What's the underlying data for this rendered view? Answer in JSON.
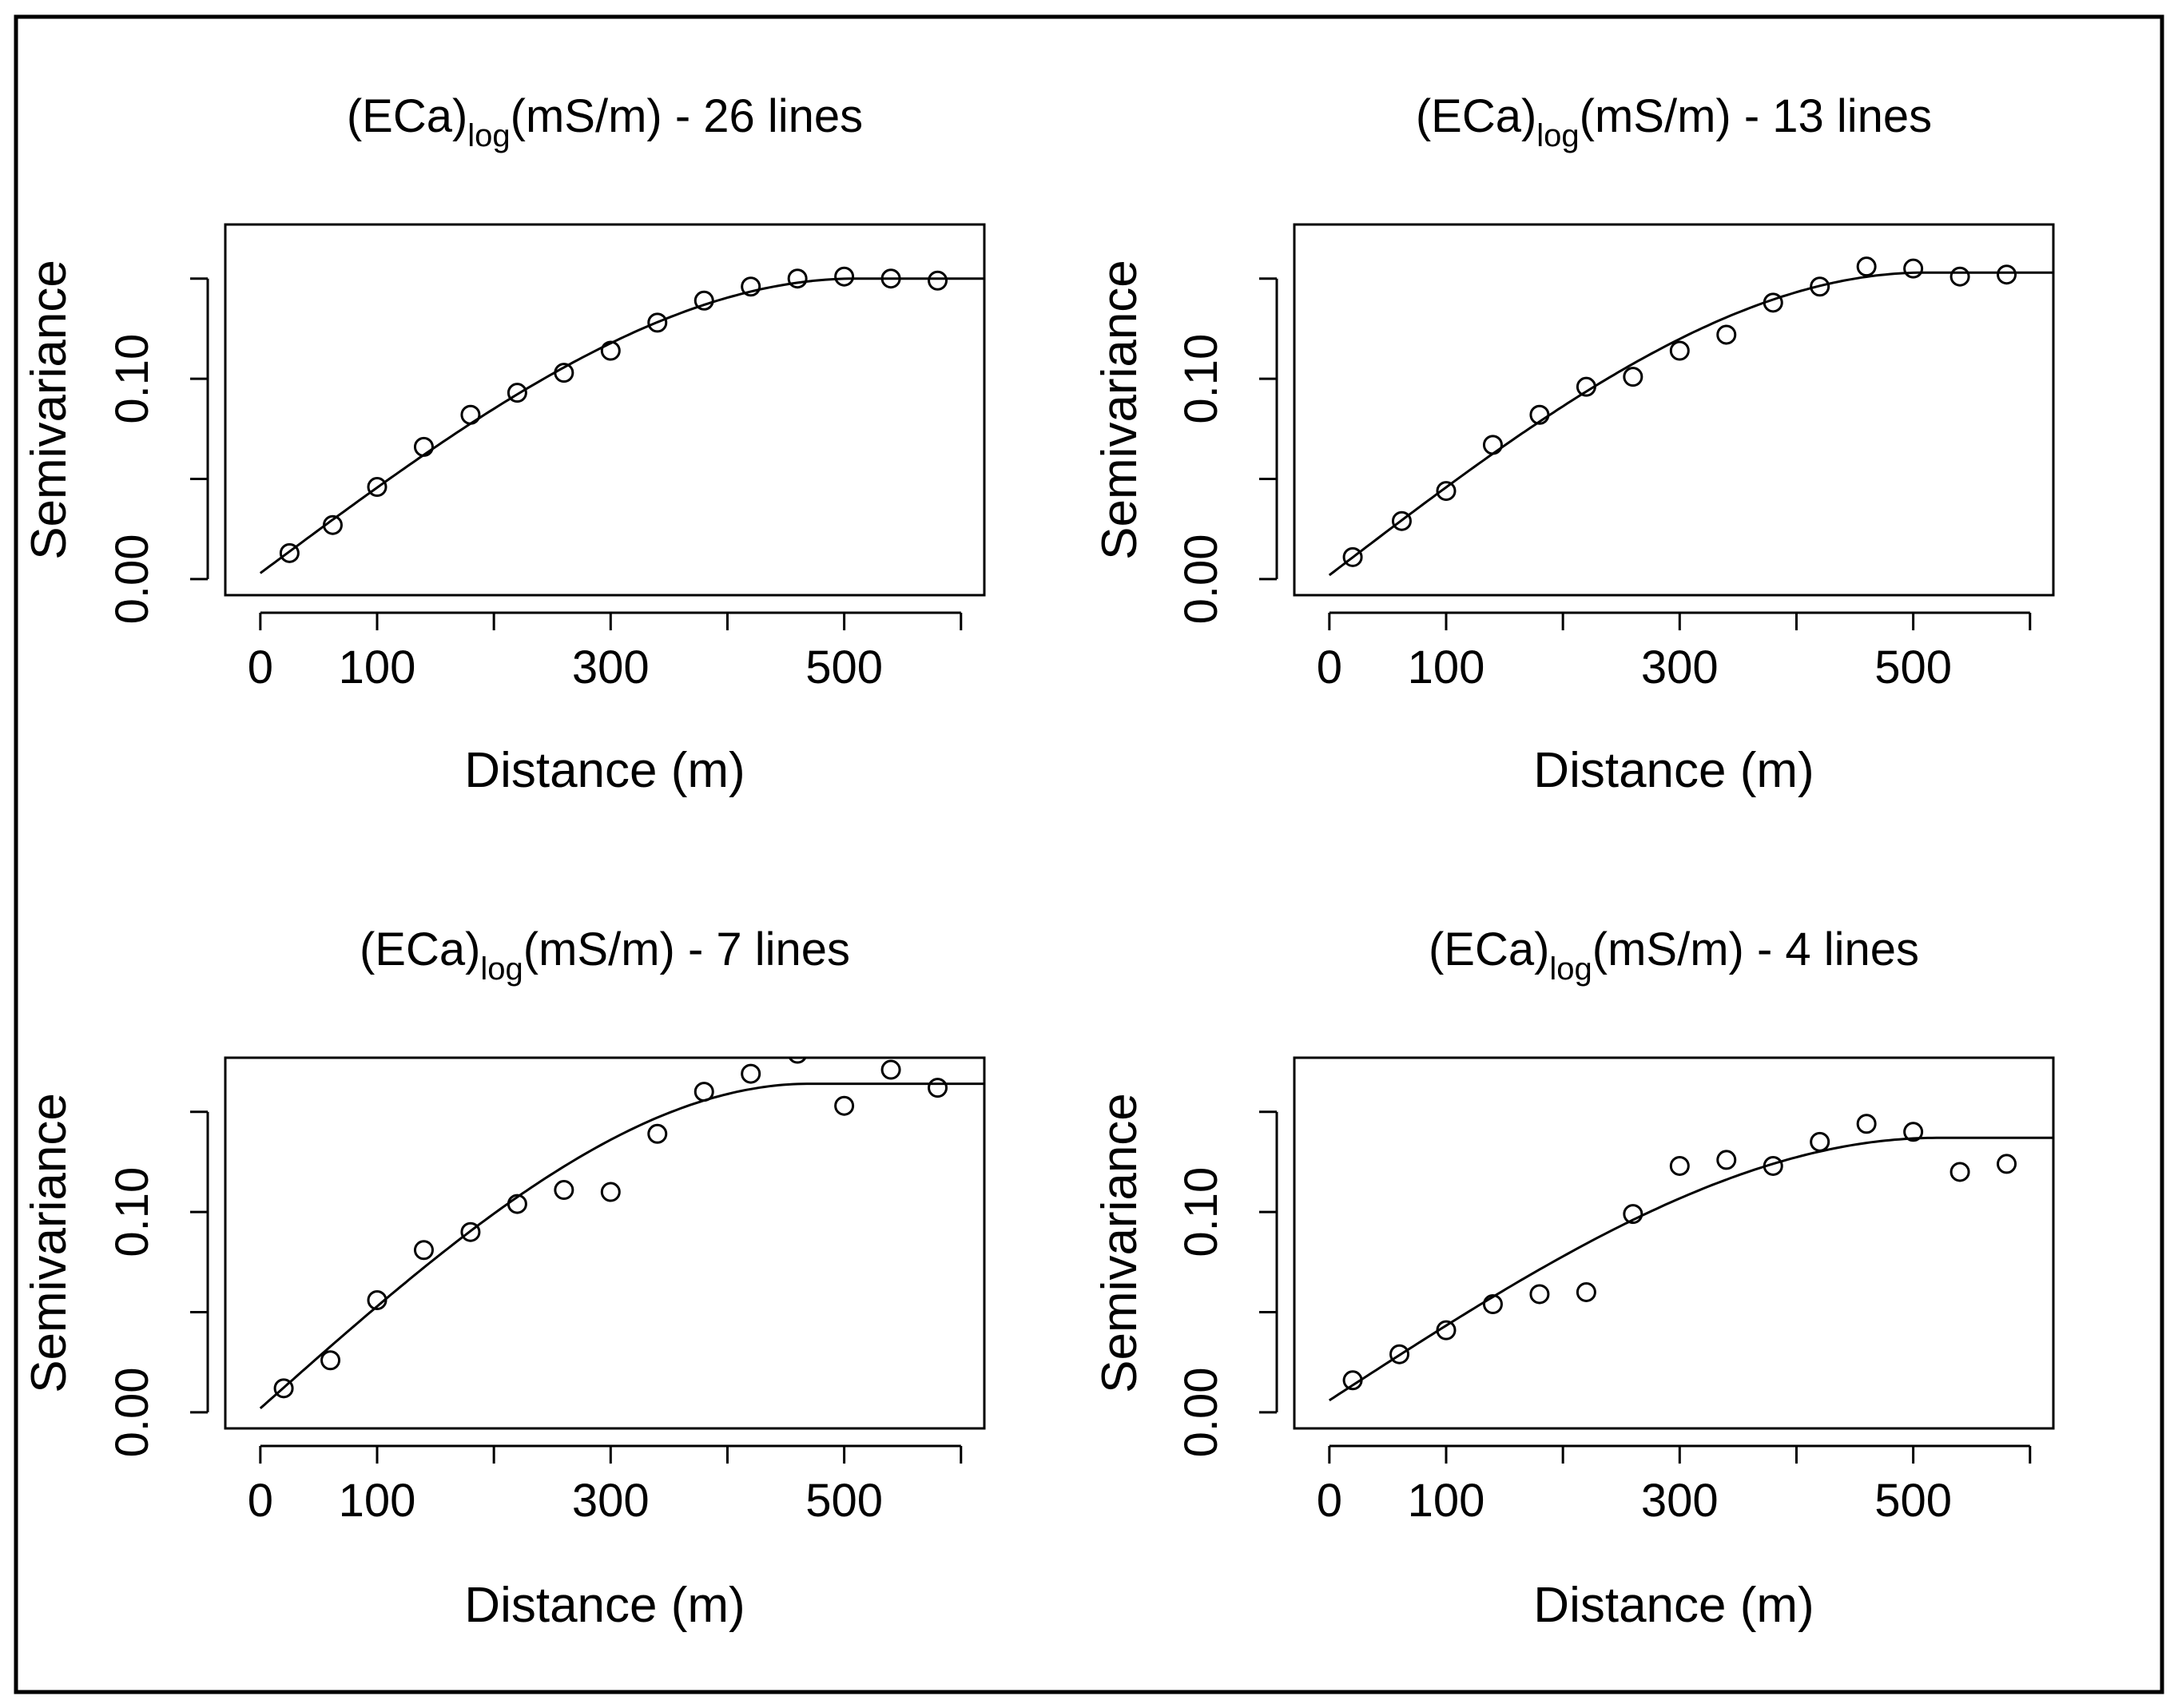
{
  "chart_data": [
    {
      "type": "scatter",
      "title": "(ECa)",
      "title_subscript": "log",
      "title_suffix": "(mS/m) - 26 lines",
      "xlabel": "Distance (m)",
      "ylabel": "Semivariance",
      "x_tick_labels": [
        "0",
        "100",
        "300",
        "500"
      ],
      "y_tick_labels": [
        "0.00",
        "0.10"
      ],
      "xlim": [
        -30,
        620
      ],
      "ylim": [
        -0.008,
        0.177
      ],
      "grid": false,
      "points": {
        "x": [
          25,
          62,
          100,
          140,
          180,
          220,
          260,
          300,
          340,
          380,
          420,
          460,
          500,
          540,
          580
        ],
        "y": [
          0.013,
          0.027,
          0.046,
          0.066,
          0.082,
          0.093,
          0.103,
          0.114,
          0.128,
          0.139,
          0.146,
          0.15,
          0.151,
          0.15,
          0.149
        ]
      },
      "fitted_curve": {
        "model": "spherical",
        "nugget": 0.003,
        "sill": 0.15,
        "range": 510
      }
    },
    {
      "type": "scatter",
      "title": "(ECa)",
      "title_subscript": "log",
      "title_suffix": "(mS/m) - 13 lines",
      "xlabel": "Distance (m)",
      "ylabel": "Semivariance",
      "x_tick_labels": [
        "0",
        "100",
        "300",
        "500"
      ],
      "y_tick_labels": [
        "0.00",
        "0.10"
      ],
      "xlim": [
        -30,
        620
      ],
      "ylim": [
        -0.008,
        0.177
      ],
      "grid": false,
      "points": {
        "x": [
          20,
          62,
          100,
          140,
          180,
          220,
          260,
          300,
          340,
          380,
          420,
          460,
          500,
          540,
          580
        ],
        "y": [
          0.011,
          0.029,
          0.044,
          0.067,
          0.082,
          0.096,
          0.101,
          0.114,
          0.122,
          0.138,
          0.146,
          0.156,
          0.155,
          0.151,
          0.152
        ]
      },
      "fitted_curve": {
        "model": "spherical",
        "nugget": 0.002,
        "sill": 0.153,
        "range": 510
      }
    },
    {
      "type": "scatter",
      "title": "(ECa)",
      "title_subscript": "log",
      "title_suffix": "(mS/m) - 7 lines",
      "xlabel": "Distance (m)",
      "ylabel": "Semivariance",
      "x_tick_labels": [
        "0",
        "100",
        "300",
        "500"
      ],
      "y_tick_labels": [
        "0.00",
        "0.10"
      ],
      "xlim": [
        -30,
        620
      ],
      "ylim": [
        -0.008,
        0.177
      ],
      "grid": false,
      "points": {
        "x": [
          20,
          60,
          100,
          140,
          180,
          220,
          260,
          300,
          340,
          380,
          420,
          460,
          500,
          540,
          580
        ],
        "y": [
          0.012,
          0.026,
          0.056,
          0.081,
          0.09,
          0.104,
          0.111,
          0.11,
          0.139,
          0.16,
          0.169,
          0.179,
          0.153,
          0.171,
          0.162
        ]
      },
      "fitted_curve": {
        "model": "spherical",
        "nugget": 0.002,
        "sill": 0.164,
        "range": 470
      }
    },
    {
      "type": "scatter",
      "title": "(ECa)",
      "title_subscript": "log",
      "title_suffix": "(mS/m) - 4 lines",
      "xlabel": "Distance (m)",
      "ylabel": "Semivariance",
      "x_tick_labels": [
        "0",
        "100",
        "300",
        "500"
      ],
      "y_tick_labels": [
        "0.00",
        "0.10"
      ],
      "xlim": [
        -30,
        620
      ],
      "ylim": [
        -0.008,
        0.177
      ],
      "grid": false,
      "points": {
        "x": [
          20,
          60,
          100,
          140,
          180,
          220,
          260,
          300,
          340,
          380,
          420,
          460,
          500,
          540,
          580
        ],
        "y": [
          0.016,
          0.029,
          0.041,
          0.054,
          0.059,
          0.06,
          0.099,
          0.123,
          0.126,
          0.123,
          0.135,
          0.144,
          0.14,
          0.12,
          0.124
        ]
      },
      "fitted_curve": {
        "model": "spherical",
        "nugget": 0.006,
        "sill": 0.137,
        "range": 520
      }
    }
  ]
}
